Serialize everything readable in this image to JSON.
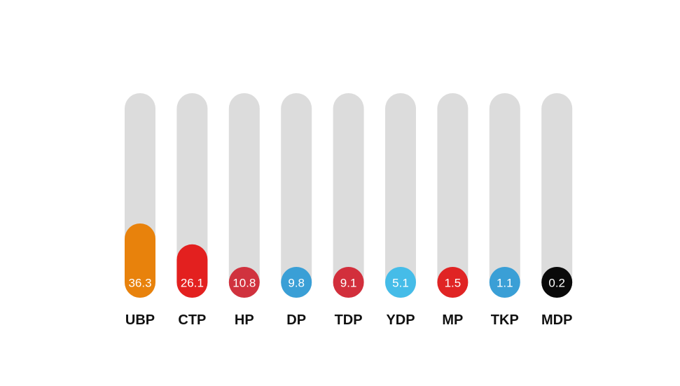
{
  "chart_data": {
    "type": "bar",
    "orientation": "vertical",
    "title": "",
    "xlabel": "",
    "ylabel": "",
    "ylim": [
      0,
      100
    ],
    "grid": false,
    "legend": "none",
    "track_color": "#dcdcdc",
    "categories": [
      "UBP",
      "CTP",
      "HP",
      "DP",
      "TDP",
      "YDP",
      "MP",
      "TKP",
      "MDP"
    ],
    "values": [
      36.3,
      26.1,
      10.8,
      9.8,
      9.1,
      5.1,
      1.5,
      1.1,
      0.2
    ],
    "value_labels": [
      "36.3",
      "26.1",
      "10.8",
      "9.8",
      "9.1",
      "5.1",
      "1.5",
      "1.1",
      "0.2"
    ],
    "colors": [
      "#e8820c",
      "#e3201f",
      "#d0323e",
      "#3a9fd6",
      "#d22f3c",
      "#45bce8",
      "#e02424",
      "#3a9fd6",
      "#0a0a0a"
    ]
  }
}
